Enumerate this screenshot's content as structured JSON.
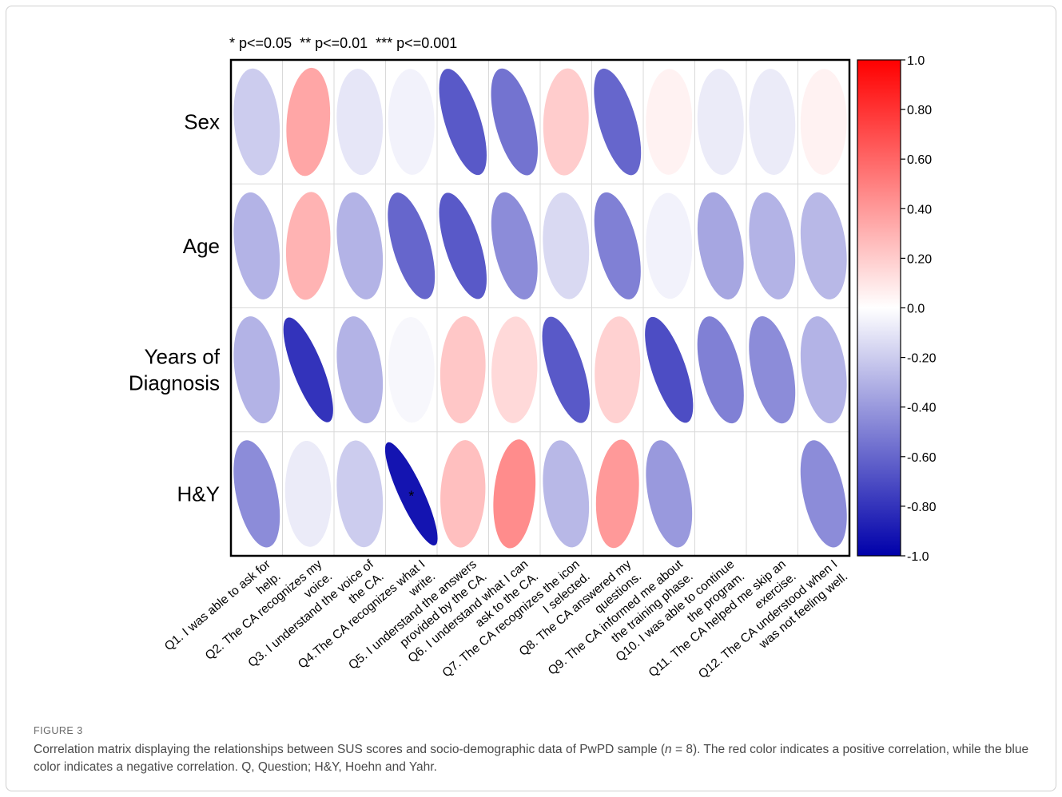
{
  "figure": {
    "label": "FIGURE 3",
    "caption_before_n": "Correlation matrix displaying the relationships between SUS scores and socio-demographic data of PwPD sample (",
    "caption_n_symbol": "n",
    "caption_after_n": " = 8). The red color indicates a positive correlation, while the blue color indicates a negative correlation. Q, Question; H&Y, Hoehn and Yahr."
  },
  "chart_data": {
    "type": "heatmap",
    "subtype": "correlation-ellipse-matrix",
    "significance_legend": "* p<=0.05  ** p<=0.01  *** p<=0.001",
    "rows": [
      [
        "Sex"
      ],
      [
        "Age"
      ],
      [
        "Years of",
        "Diagnosis"
      ],
      [
        "H&Y"
      ]
    ],
    "columns": [
      [
        "Q1. I was able to ask for",
        "help."
      ],
      [
        "Q2. The CA recognizes my",
        "voice."
      ],
      [
        "Q3. I understand the voice of",
        "the CA."
      ],
      [
        "Q4.The CA recognizes what I",
        "write."
      ],
      [
        "Q5. I understand the answers",
        "provided by the CA."
      ],
      [
        "Q6. I understand what I can",
        "ask to the CA."
      ],
      [
        "Q7. The CA recognizes the icon",
        "I selected."
      ],
      [
        "Q8. The CA answered my",
        "questions."
      ],
      [
        "Q9. The CA informed me about",
        "the training phase."
      ],
      [
        "Q10. I was able to continue",
        "the program."
      ],
      [
        "Q11. The CA helped me skip an",
        "exercise."
      ],
      [
        "Q12. The CA understood when I",
        "was not feeling well."
      ]
    ],
    "values": [
      [
        -0.2,
        0.35,
        -0.1,
        -0.05,
        -0.65,
        -0.55,
        0.2,
        -0.6,
        0.05,
        -0.08,
        -0.08,
        0.05
      ],
      [
        -0.3,
        0.3,
        -0.3,
        -0.6,
        -0.65,
        -0.45,
        -0.15,
        -0.5,
        -0.05,
        -0.35,
        -0.3,
        -0.28
      ],
      [
        -0.3,
        -0.8,
        -0.3,
        -0.03,
        0.22,
        0.15,
        -0.65,
        0.18,
        -0.7,
        -0.5,
        -0.45,
        -0.3
      ],
      [
        -0.45,
        -0.08,
        -0.2,
        -0.92,
        0.25,
        0.45,
        -0.28,
        0.4,
        -0.4,
        null,
        null,
        -0.45
      ]
    ],
    "significance": [
      [
        "",
        "",
        "",
        "",
        "",
        "",
        "",
        "",
        "",
        "",
        "",
        ""
      ],
      [
        "",
        "",
        "",
        "",
        "",
        "",
        "",
        "",
        "",
        "",
        "",
        ""
      ],
      [
        "",
        "",
        "",
        "",
        "",
        "",
        "",
        "",
        "",
        "",
        "",
        ""
      ],
      [
        "",
        "",
        "",
        "*",
        "",
        "",
        "",
        "",
        "",
        "",
        "",
        ""
      ]
    ],
    "colorbar": {
      "range": [
        -1.0,
        1.0
      ],
      "tick_labels": [
        "1.0",
        "0.80",
        "0.60",
        "0.40",
        "0.20",
        "0.0",
        "-0.20",
        "-0.40",
        "-0.60",
        "-0.80",
        "-1.0"
      ],
      "tick_values": [
        1.0,
        0.8,
        0.6,
        0.4,
        0.2,
        0.0,
        -0.2,
        -0.4,
        -0.6,
        -0.8,
        -1.0
      ],
      "positive_color": "#ff0000",
      "neutral_color": "#ffffff",
      "negative_color": "#0000aa"
    }
  }
}
